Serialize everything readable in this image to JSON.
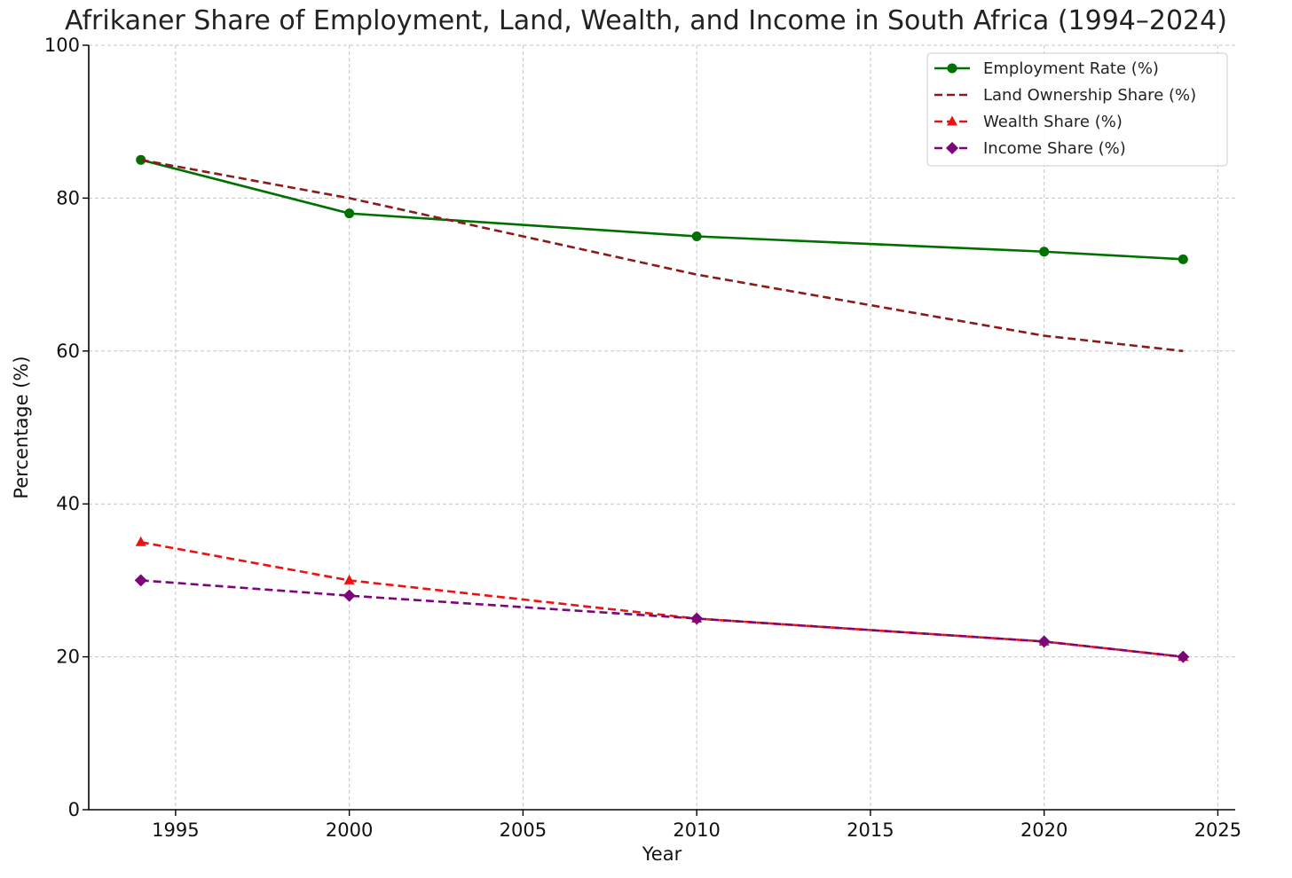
{
  "chart_data": {
    "type": "line",
    "title": "Afrikaner Share of Employment, Land, Wealth, and Income in South Africa (1994–2024)",
    "xlabel": "Year",
    "ylabel": "Percentage (%)",
    "xlim": [
      1992.5,
      2025.5
    ],
    "ylim": [
      0,
      100
    ],
    "xticks": [
      1995,
      2000,
      2005,
      2010,
      2015,
      2020,
      2025
    ],
    "yticks": [
      0,
      20,
      40,
      60,
      80,
      100
    ],
    "grid": true,
    "legend_position": "top-right",
    "x": [
      1994,
      2000,
      2010,
      2020,
      2024
    ],
    "series": [
      {
        "name": "Employment Rate (%)",
        "values": [
          85,
          78,
          75,
          73,
          72
        ],
        "color": "#007000",
        "line_style": "solid",
        "marker": "circle"
      },
      {
        "name": "Land Ownership Share (%)",
        "values": [
          85,
          80,
          70,
          62,
          60
        ],
        "color": "#8b1a1a",
        "line_style": "dashed",
        "marker": "none"
      },
      {
        "name": "Wealth Share (%)",
        "values": [
          35,
          30,
          25,
          22,
          20
        ],
        "color": "#ee1111",
        "line_style": "dashed",
        "marker": "triangle"
      },
      {
        "name": "Income Share (%)",
        "values": [
          30,
          28,
          25,
          22,
          20
        ],
        "color": "#7a067a",
        "line_style": "dashed",
        "marker": "diamond"
      }
    ]
  }
}
